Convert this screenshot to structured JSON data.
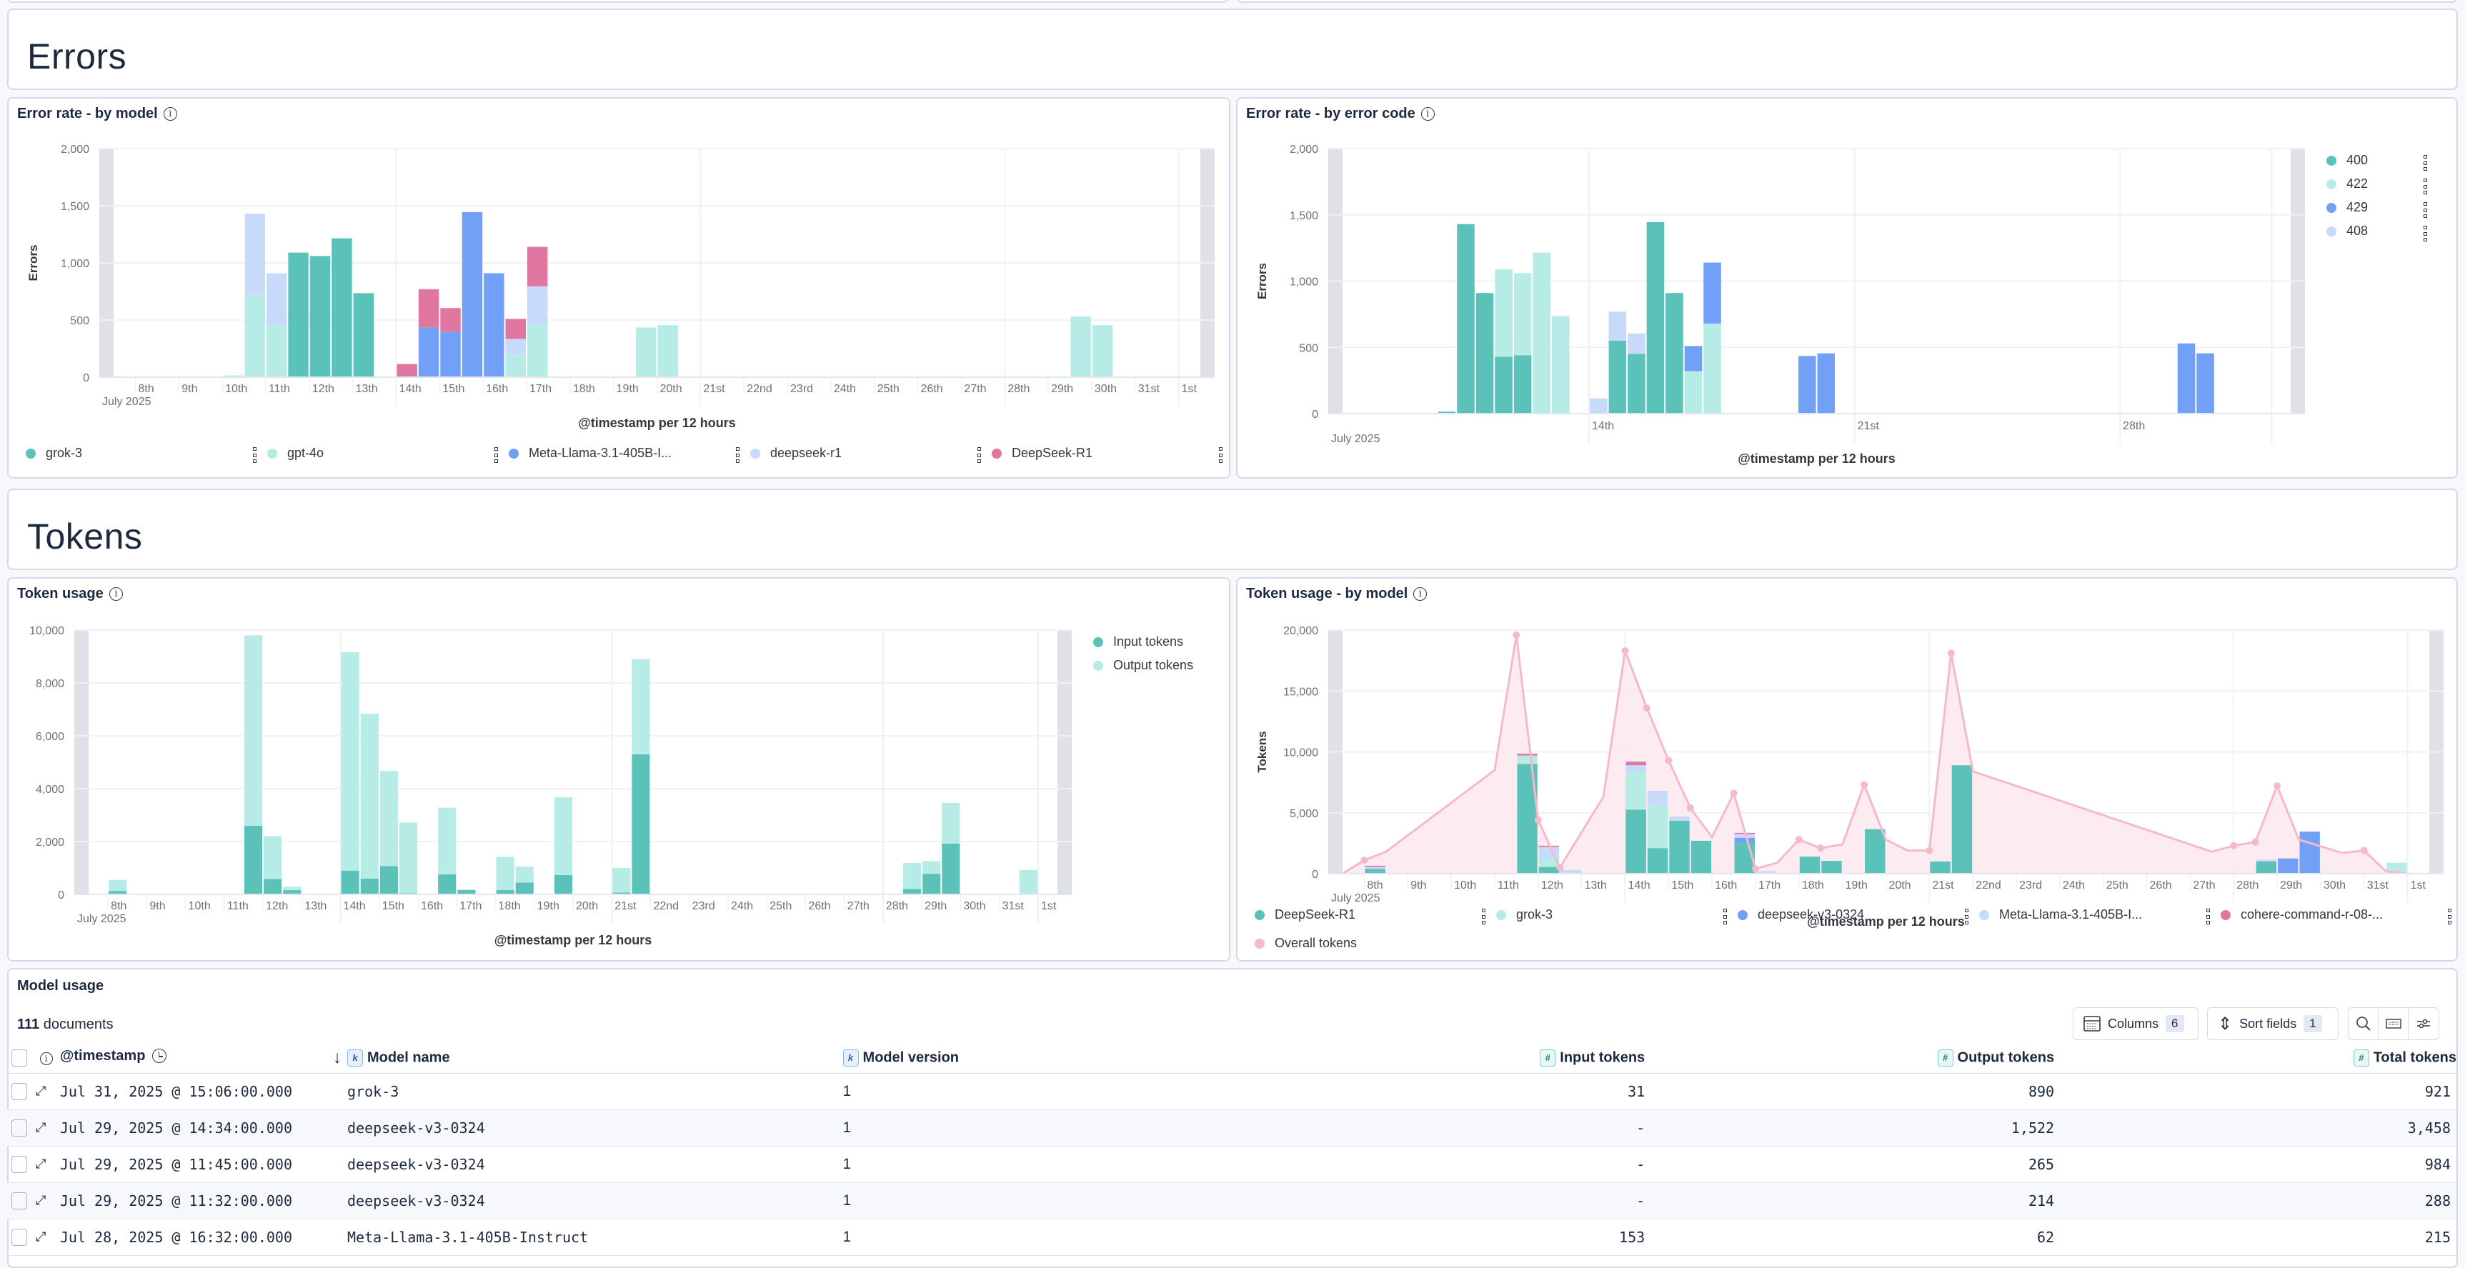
{
  "sections": {
    "errors_title": "Errors",
    "tokens_title": "Tokens"
  },
  "colors": {
    "teal": "#5bc2ba",
    "light_teal": "#b6ebe6",
    "blue": "#72a0f6",
    "light_blue": "#c7daf9",
    "pink": "#df77a0",
    "overall_pink": "#f5b9cc",
    "overall_fill": "#fce8ef",
    "grid": "#eef1f7",
    "axis_text": "#6a717d",
    "edge_band": "#dfe1e7"
  },
  "chart_data": [
    {
      "id": "error_by_model",
      "type": "bar",
      "stacked": true,
      "title": "Error rate - by model",
      "xlabel": "@timestamp per 12 hours",
      "ylabel": "Errors",
      "ylim": [
        0,
        2000
      ],
      "yticks": [
        "0",
        "500",
        "1,000",
        "1,500",
        "2,000"
      ],
      "ytick_values": [
        0,
        500,
        1000,
        1500,
        2000
      ],
      "x_start_day": 7.5,
      "x_end_day": 32.5,
      "bucket_days": 0.5,
      "xticks": [
        "8th",
        "9th",
        "10th",
        "11th",
        "12th",
        "13th",
        "14th",
        "15th",
        "16th",
        "17th",
        "18th",
        "19th",
        "20th",
        "21st",
        "22nd",
        "23rd",
        "24th",
        "25th",
        "26th",
        "27th",
        "28th",
        "29th",
        "30th",
        "31st",
        "1st"
      ],
      "xtick_days": [
        8,
        9,
        10,
        11,
        12,
        13,
        14,
        15,
        16,
        17,
        18,
        19,
        20,
        21,
        22,
        23,
        24,
        25,
        26,
        27,
        28,
        29,
        30,
        31,
        32
      ],
      "x_sublabel": "July 2025",
      "major_grid_days": [
        14,
        21,
        28,
        32
      ],
      "legend_position": "bottom",
      "series": [
        {
          "name": "grok-3",
          "color": "#5bc2ba",
          "points": [
            [
              11.5,
              1090
            ],
            [
              12.0,
              1060
            ],
            [
              12.5,
              1215
            ],
            [
              13.0,
              735
            ]
          ]
        },
        {
          "name": "gpt-4o",
          "color": "#b6ebe6",
          "points": [
            [
              10.0,
              15
            ],
            [
              10.5,
              720
            ],
            [
              11.0,
              460
            ],
            [
              16.5,
              195
            ],
            [
              17.0,
              460
            ],
            [
              19.5,
              435
            ],
            [
              20.0,
              455
            ],
            [
              29.5,
              530
            ],
            [
              30.0,
              455
            ]
          ]
        },
        {
          "name": "Meta-Llama-3.1-405B-I...",
          "color": "#72a0f6",
          "points": [
            [
              14.5,
              435
            ],
            [
              15.0,
              395
            ],
            [
              15.5,
              1445
            ],
            [
              16.0,
              910
            ]
          ]
        },
        {
          "name": "deepseek-r1",
          "color": "#c7daf9",
          "points": [
            [
              10.5,
              710
            ],
            [
              11.0,
              450
            ],
            [
              16.5,
              140
            ],
            [
              17.0,
              335
            ]
          ]
        },
        {
          "name": "DeepSeek-R1",
          "color": "#df77a0",
          "points": [
            [
              14.0,
              115
            ],
            [
              14.5,
              335
            ],
            [
              15.0,
              210
            ],
            [
              16.5,
              175
            ],
            [
              17.0,
              345
            ]
          ]
        }
      ]
    },
    {
      "id": "error_by_code",
      "type": "bar",
      "stacked": true,
      "title": "Error rate - by error code",
      "xlabel": "@timestamp per 12 hours",
      "ylabel": "Errors",
      "ylim": [
        0,
        2000
      ],
      "yticks": [
        "0",
        "500",
        "1,000",
        "1,500",
        "2,000"
      ],
      "ytick_values": [
        0,
        500,
        1000,
        1500,
        2000
      ],
      "x_start_day": 7.5,
      "x_end_day": 32.5,
      "bucket_days": 0.5,
      "xticks": [
        "14th",
        "21st",
        "28th"
      ],
      "xtick_days": [
        14,
        21,
        28
      ],
      "x_sublabel": "July 2025",
      "major_grid_days": [
        14,
        21,
        28,
        32
      ],
      "legend_position": "right",
      "series": [
        {
          "name": "400",
          "color": "#5bc2ba",
          "points": [
            [
              10.0,
              15
            ],
            [
              10.5,
              1430
            ],
            [
              11.0,
              910
            ],
            [
              11.5,
              430
            ],
            [
              12.0,
              440
            ],
            [
              14.5,
              550
            ],
            [
              15.0,
              450
            ],
            [
              15.5,
              1445
            ],
            [
              16.0,
              910
            ]
          ]
        },
        {
          "name": "422",
          "color": "#b6ebe6",
          "points": [
            [
              11.5,
              660
            ],
            [
              12.0,
              620
            ],
            [
              12.5,
              1215
            ],
            [
              13.0,
              735
            ],
            [
              16.5,
              320
            ],
            [
              17.0,
              680
            ]
          ]
        },
        {
          "name": "429",
          "color": "#72a0f6",
          "points": [
            [
              16.5,
              190
            ],
            [
              17.0,
              460
            ],
            [
              19.5,
              435
            ],
            [
              20.0,
              455
            ],
            [
              29.5,
              530
            ],
            [
              30.0,
              455
            ]
          ]
        },
        {
          "name": "408",
          "color": "#c7daf9",
          "points": [
            [
              14.0,
              115
            ],
            [
              14.5,
              220
            ],
            [
              15.0,
              155
            ]
          ]
        }
      ]
    },
    {
      "id": "token_usage",
      "type": "bar",
      "stacked": true,
      "title": "Token usage",
      "xlabel": "@timestamp per 12 hours",
      "ylabel": "",
      "ylim": [
        0,
        10000
      ],
      "yticks": [
        "0",
        "2,000",
        "4,000",
        "6,000",
        "8,000",
        "10,000"
      ],
      "ytick_values": [
        0,
        2000,
        4000,
        6000,
        8000,
        10000
      ],
      "x_start_day": 7.5,
      "x_end_day": 32.5,
      "bucket_days": 0.5,
      "xticks": [
        "8th",
        "9th",
        "10th",
        "11th",
        "12th",
        "13th",
        "14th",
        "15th",
        "16th",
        "17th",
        "18th",
        "19th",
        "20th",
        "21st",
        "22nd",
        "23rd",
        "24th",
        "25th",
        "26th",
        "27th",
        "28th",
        "29th",
        "30th",
        "31st",
        "1st"
      ],
      "xtick_days": [
        8,
        9,
        10,
        11,
        12,
        13,
        14,
        15,
        16,
        17,
        18,
        19,
        20,
        21,
        22,
        23,
        24,
        25,
        26,
        27,
        28,
        29,
        30,
        31,
        32
      ],
      "x_sublabel": "July 2025",
      "major_grid_days": [
        14,
        21,
        28,
        32
      ],
      "legend_position": "right",
      "series": [
        {
          "name": "Input tokens",
          "color": "#5bc2ba",
          "points": [
            [
              8.0,
              130
            ],
            [
              11.5,
              2600
            ],
            [
              12.0,
              580
            ],
            [
              12.5,
              160
            ],
            [
              14.0,
              900
            ],
            [
              14.5,
              600
            ],
            [
              15.0,
              1070
            ],
            [
              15.5,
              40
            ],
            [
              16.5,
              760
            ],
            [
              17.0,
              170
            ],
            [
              18.0,
              160
            ],
            [
              18.5,
              450
            ],
            [
              19.5,
              730
            ],
            [
              21.0,
              70
            ],
            [
              21.5,
              5300
            ],
            [
              28.5,
              200
            ],
            [
              29.0,
              780
            ],
            [
              29.5,
              1920
            ],
            [
              31.5,
              30
            ]
          ]
        },
        {
          "name": "Output tokens",
          "color": "#b6ebe6",
          "points": [
            [
              8.0,
              420
            ],
            [
              11.5,
              7200
            ],
            [
              12.0,
              1620
            ],
            [
              12.5,
              130
            ],
            [
              14.0,
              8270
            ],
            [
              14.5,
              6230
            ],
            [
              15.0,
              3600
            ],
            [
              15.5,
              2680
            ],
            [
              16.5,
              2520
            ],
            [
              18.0,
              1260
            ],
            [
              18.5,
              600
            ],
            [
              19.5,
              2940
            ],
            [
              21.0,
              930
            ],
            [
              21.5,
              3600
            ],
            [
              28.5,
              990
            ],
            [
              29.0,
              480
            ],
            [
              29.5,
              1540
            ],
            [
              31.5,
              890
            ]
          ]
        }
      ]
    },
    {
      "id": "token_usage_by_model",
      "type": "bar",
      "stacked": true,
      "title": "Token usage - by model",
      "xlabel": "@timestamp per 12 hours",
      "ylabel": "Tokens",
      "ylim": [
        0,
        20000
      ],
      "yticks": [
        "0",
        "5,000",
        "10,000",
        "15,000",
        "20,000"
      ],
      "ytick_values": [
        0,
        5000,
        10000,
        15000,
        20000
      ],
      "x_start_day": 7.5,
      "x_end_day": 32.5,
      "bucket_days": 0.5,
      "xticks": [
        "8th",
        "9th",
        "10th",
        "11th",
        "12th",
        "13th",
        "14th",
        "15th",
        "16th",
        "17th",
        "18th",
        "19th",
        "20th",
        "21st",
        "22nd",
        "23rd",
        "24th",
        "25th",
        "26th",
        "27th",
        "28th",
        "29th",
        "30th",
        "31st",
        "1st"
      ],
      "xtick_days": [
        8,
        9,
        10,
        11,
        12,
        13,
        14,
        15,
        16,
        17,
        18,
        19,
        20,
        21,
        22,
        23,
        24,
        25,
        26,
        27,
        28,
        29,
        30,
        31,
        32
      ],
      "x_sublabel": "July 2025",
      "major_grid_days": [
        14,
        21,
        28,
        32
      ],
      "legend_position": "bottom",
      "series": [
        {
          "name": "DeepSeek-R1",
          "color": "#5bc2ba",
          "points": [
            [
              8.0,
              400
            ],
            [
              11.5,
              9000
            ],
            [
              12.0,
              550
            ],
            [
              14.0,
              5250
            ],
            [
              14.5,
              2100
            ],
            [
              15.0,
              4350
            ],
            [
              15.5,
              2700
            ],
            [
              16.5,
              2550
            ],
            [
              18.0,
              1400
            ],
            [
              18.5,
              1050
            ],
            [
              19.5,
              3650
            ],
            [
              21.0,
              1000
            ],
            [
              21.5,
              8900
            ],
            [
              28.5,
              1000
            ]
          ]
        },
        {
          "name": "grok-3",
          "color": "#b6ebe6",
          "points": [
            [
              11.5,
              700
            ],
            [
              12.0,
              700
            ],
            [
              14.0,
              3100
            ],
            [
              14.5,
              3500
            ],
            [
              31.5,
              900
            ]
          ]
        },
        {
          "name": "deepseek-v3-0324",
          "color": "#72a0f6",
          "points": [
            [
              16.5,
              400
            ],
            [
              29.0,
              1250
            ],
            [
              29.5,
              3450
            ]
          ]
        },
        {
          "name": "Meta-Llama-3.1-405B-I...",
          "color": "#c7daf9",
          "points": [
            [
              8.0,
              150
            ],
            [
              12.0,
              950
            ],
            [
              12.5,
              300
            ],
            [
              14.0,
              550
            ],
            [
              14.5,
              1200
            ],
            [
              15.0,
              350
            ],
            [
              16.5,
              300
            ],
            [
              17.0,
              200
            ],
            [
              28.5,
              150
            ]
          ]
        },
        {
          "name": "cohere-command-r-08-...",
          "color": "#df77a0",
          "points": [
            [
              8.0,
              100
            ],
            [
              11.5,
              150
            ],
            [
              12.0,
              100
            ],
            [
              14.0,
              300
            ],
            [
              16.5,
              100
            ]
          ]
        }
      ],
      "overall_line": {
        "name": "Overall tokens",
        "color": "#f5b9cc",
        "points": [
          [
            7.5,
            0
          ],
          [
            8.0,
            1100
          ],
          [
            8.5,
            1800
          ],
          [
            11.0,
            8500
          ],
          [
            11.5,
            19600
          ],
          [
            12.0,
            4400
          ],
          [
            12.5,
            500
          ],
          [
            13.5,
            6300
          ],
          [
            14.0,
            18300
          ],
          [
            14.5,
            13600
          ],
          [
            15.0,
            9300
          ],
          [
            15.5,
            5400
          ],
          [
            16.0,
            3000
          ],
          [
            16.5,
            6600
          ],
          [
            17.0,
            400
          ],
          [
            17.5,
            900
          ],
          [
            18.0,
            2800
          ],
          [
            18.5,
            2100
          ],
          [
            19.0,
            2400
          ],
          [
            19.5,
            7300
          ],
          [
            20.0,
            2800
          ],
          [
            20.5,
            1900
          ],
          [
            21.0,
            1900
          ],
          [
            21.5,
            18100
          ],
          [
            22.0,
            8400
          ],
          [
            27.5,
            1800
          ],
          [
            28.0,
            2300
          ],
          [
            28.5,
            2600
          ],
          [
            29.0,
            7200
          ],
          [
            29.5,
            2800
          ],
          [
            30.5,
            1700
          ],
          [
            31.0,
            1900
          ],
          [
            31.5,
            200
          ],
          [
            32.0,
            0
          ]
        ],
        "marker_days": [
          8.0,
          11.5,
          12.0,
          12.5,
          14.0,
          14.5,
          15.0,
          15.5,
          16.5,
          17.0,
          18.0,
          18.5,
          19.5,
          21.0,
          21.5,
          28.0,
          28.5,
          29.0,
          31.0
        ]
      }
    }
  ],
  "model_usage": {
    "title": "Model usage",
    "count": "111",
    "count_label": "documents",
    "columns_button": "Columns",
    "columns_count": "6",
    "sort_button": "Sort fields",
    "sort_count": "1",
    "headers": {
      "timestamp": "@timestamp",
      "model_name": "Model name",
      "model_version": "Model version",
      "input_tokens": "Input tokens",
      "output_tokens": "Output tokens",
      "total_tokens": "Total tokens"
    },
    "rows": [
      {
        "timestamp": "Jul 31, 2025 @ 15:06:00.000",
        "model_name": "grok-3",
        "model_version": "1",
        "input_tokens": "31",
        "output_tokens": "890",
        "total_tokens": "921"
      },
      {
        "timestamp": "Jul 29, 2025 @ 14:34:00.000",
        "model_name": "deepseek-v3-0324",
        "model_version": "1",
        "input_tokens": "-",
        "output_tokens": "1,522",
        "total_tokens": "3,458"
      },
      {
        "timestamp": "Jul 29, 2025 @ 11:45:00.000",
        "model_name": "deepseek-v3-0324",
        "model_version": "1",
        "input_tokens": "-",
        "output_tokens": "265",
        "total_tokens": "984"
      },
      {
        "timestamp": "Jul 29, 2025 @ 11:32:00.000",
        "model_name": "deepseek-v3-0324",
        "model_version": "1",
        "input_tokens": "-",
        "output_tokens": "214",
        "total_tokens": "288"
      },
      {
        "timestamp": "Jul 28, 2025 @ 16:32:00.000",
        "model_name": "Meta-Llama-3.1-405B-Instruct",
        "model_version": "1",
        "input_tokens": "153",
        "output_tokens": "62",
        "total_tokens": "215"
      }
    ]
  }
}
